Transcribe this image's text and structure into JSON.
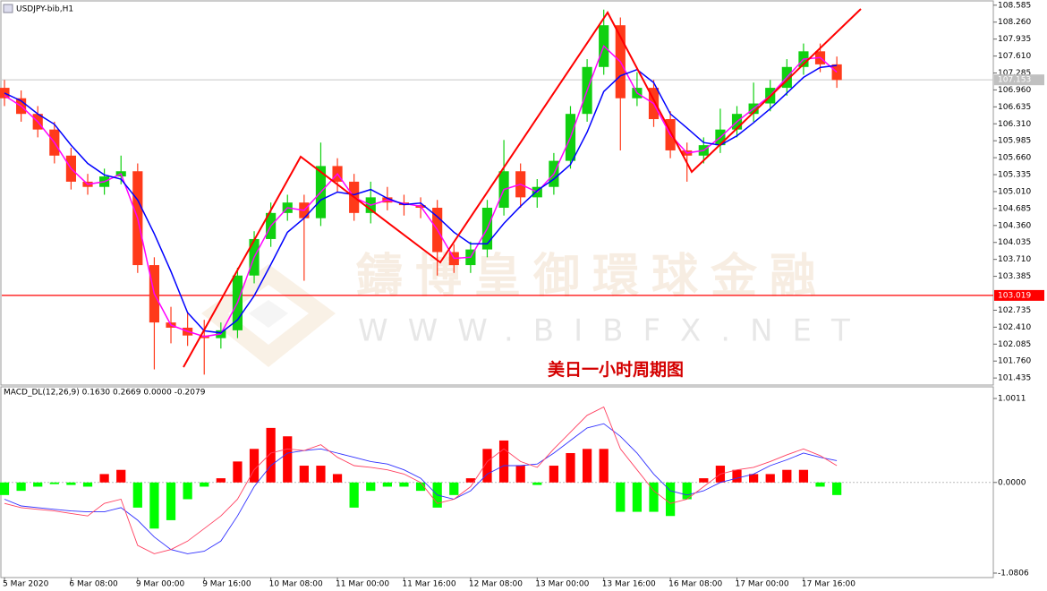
{
  "chart_data": [
    {
      "type": "candlestick",
      "title": "USDJPY-bib,H1",
      "annotation": "美日一小时周期图",
      "watermark": [
        "鑄博皇御環球金融",
        "WWW.BIBFX.NET"
      ],
      "up_color": "#10d010",
      "down_color": "#ff3a1a",
      "xlim": [
        0,
        237.6
      ],
      "x": [
        0,
        4,
        8,
        12,
        16,
        20,
        24,
        28,
        32,
        36,
        40,
        44,
        48,
        52,
        56,
        60,
        64,
        68,
        72,
        76,
        80,
        84,
        88,
        92,
        96,
        100,
        104,
        108,
        112,
        116,
        120,
        124,
        128,
        132,
        136,
        140,
        144,
        148,
        152,
        156,
        160,
        164,
        168,
        172,
        176,
        180,
        184,
        188,
        192,
        196,
        200
      ],
      "open": [
        107.0,
        106.8,
        106.5,
        106.2,
        105.7,
        105.2,
        105.1,
        105.3,
        105.4,
        103.6,
        102.5,
        102.4,
        102.25,
        102.2,
        102.35,
        103.4,
        104.1,
        104.6,
        104.8,
        104.5,
        105.5,
        105.2,
        104.6,
        104.9,
        104.8,
        104.75,
        104.7,
        103.85,
        103.6,
        103.9,
        104.7,
        105.4,
        104.9,
        105.1,
        105.6,
        106.5,
        107.4,
        108.2,
        106.8,
        107.0,
        106.4,
        105.8,
        105.7,
        105.9,
        106.2,
        106.5,
        106.7,
        107.0,
        107.4,
        107.7,
        107.45
      ],
      "high": [
        107.15,
        106.95,
        106.65,
        106.35,
        105.85,
        105.35,
        105.45,
        105.7,
        105.55,
        103.75,
        102.8,
        102.7,
        102.55,
        102.5,
        103.55,
        104.25,
        104.8,
        104.95,
        104.95,
        105.95,
        105.65,
        105.35,
        105.2,
        105.1,
        104.95,
        104.9,
        104.85,
        104.0,
        104.05,
        104.85,
        106.0,
        105.55,
        105.25,
        105.75,
        106.65,
        107.55,
        108.5,
        108.35,
        107.3,
        107.15,
        106.55,
        105.95,
        106.05,
        106.6,
        106.65,
        107.1,
        107.15,
        107.55,
        107.85,
        107.85,
        107.6
      ],
      "low": [
        106.65,
        106.35,
        106.05,
        105.55,
        105.05,
        104.95,
        104.95,
        105.15,
        103.45,
        101.6,
        102.1,
        102.05,
        101.5,
        102.0,
        102.2,
        103.25,
        103.95,
        104.45,
        103.3,
        104.35,
        105.0,
        104.45,
        104.4,
        104.65,
        104.55,
        104.5,
        103.4,
        103.45,
        103.45,
        103.75,
        104.55,
        104.7,
        104.7,
        104.95,
        105.45,
        106.35,
        107.25,
        105.8,
        106.65,
        106.25,
        105.65,
        105.2,
        105.55,
        105.75,
        106.05,
        106.35,
        106.55,
        106.85,
        107.25,
        107.3,
        107.0
      ],
      "close": [
        106.8,
        106.5,
        106.2,
        105.7,
        105.2,
        105.1,
        105.3,
        105.4,
        103.6,
        102.5,
        102.4,
        102.25,
        102.2,
        102.35,
        103.4,
        104.1,
        104.6,
        104.8,
        104.5,
        105.5,
        105.2,
        104.6,
        104.9,
        104.8,
        104.75,
        104.7,
        103.85,
        103.6,
        103.9,
        104.7,
        105.4,
        104.9,
        105.1,
        105.6,
        106.5,
        107.4,
        108.2,
        106.8,
        107.0,
        106.4,
        105.8,
        105.7,
        105.9,
        106.2,
        106.5,
        106.7,
        107.0,
        107.4,
        107.7,
        107.45,
        107.15
      ],
      "lines": [
        {
          "color": "#ff00ff",
          "values": [
            106.85,
            106.65,
            106.35,
            105.95,
            105.45,
            105.15,
            105.2,
            105.35,
            104.5,
            103.05,
            102.45,
            102.33,
            102.23,
            102.28,
            102.88,
            103.75,
            104.35,
            104.7,
            104.65,
            105.0,
            105.35,
            104.9,
            104.75,
            104.85,
            104.78,
            104.73,
            104.28,
            103.73,
            103.75,
            104.3,
            105.05,
            105.15,
            105.0,
            105.35,
            106.05,
            106.95,
            107.8,
            107.5,
            106.9,
            106.7,
            106.1,
            105.75,
            105.8,
            106.05,
            106.35,
            106.6,
            106.85,
            107.2,
            107.55,
            107.58,
            107.3
          ]
        },
        {
          "color": "#0000ff",
          "values": [
            106.9,
            106.75,
            106.5,
            106.3,
            105.9,
            105.55,
            105.33,
            105.25,
            104.85,
            104.2,
            103.48,
            102.69,
            102.34,
            102.3,
            102.55,
            103.01,
            103.61,
            104.23,
            104.5,
            104.85,
            105.0,
            104.95,
            105.05,
            104.88,
            104.76,
            104.79,
            104.53,
            104.23,
            104.01,
            104.01,
            104.4,
            104.73,
            105.03,
            105.25,
            105.53,
            106.15,
            106.93,
            107.23,
            107.35,
            107.1,
            106.5,
            106.23,
            105.95,
            105.9,
            106.08,
            106.33,
            106.6,
            106.9,
            107.2,
            107.39,
            107.43
          ]
        }
      ],
      "hline": {
        "value": 103.019,
        "color": "#ff0000"
      },
      "last_price": 107.153,
      "ylim": [
        101.3,
        108.65
      ],
      "yticks": [
        108.585,
        {
          "value": 108.26,
          "label": "108.260"
        },
        107.935,
        {
          "value": 107.61,
          "label": "107.610"
        },
        107.285,
        {
          "value": 106.96,
          "label": "106.960"
        },
        106.635,
        {
          "value": 106.31,
          "label": "106.310"
        },
        105.985,
        {
          "value": 105.66,
          "label": "105.660"
        },
        105.335,
        {
          "value": 105.01,
          "label": "105.010"
        },
        104.685,
        {
          "value": 104.36,
          "label": "104.360"
        },
        104.035,
        {
          "value": 103.71,
          "label": "103.710"
        },
        103.385,
        102.735,
        {
          "value": 102.41,
          "label": "102.410"
        },
        102.085,
        {
          "value": 101.76,
          "label": "101.760"
        },
        101.435
      ]
    },
    {
      "type": "macd",
      "label": "MACD_DL(12,26,9) 0.1630 0.2669 0.0000 -0.2079",
      "up_color": "#ff0000",
      "down_color": "#00ff00",
      "xlim": [
        0,
        237.6
      ],
      "x": [
        0,
        4,
        8,
        12,
        16,
        20,
        24,
        28,
        32,
        36,
        40,
        44,
        48,
        52,
        56,
        60,
        64,
        68,
        72,
        76,
        80,
        84,
        88,
        92,
        96,
        100,
        104,
        108,
        112,
        116,
        120,
        124,
        128,
        132,
        136,
        140,
        144,
        148,
        152,
        156,
        160,
        164,
        168,
        172,
        176,
        180,
        184,
        188,
        192,
        196,
        200
      ],
      "values": [
        -0.15,
        -0.1,
        -0.05,
        -0.02,
        -0.03,
        -0.05,
        0.1,
        0.15,
        -0.3,
        -0.55,
        -0.45,
        -0.2,
        -0.05,
        0.05,
        0.25,
        0.4,
        0.65,
        0.55,
        0.2,
        0.2,
        0.1,
        -0.3,
        -0.1,
        -0.05,
        -0.05,
        -0.1,
        -0.3,
        -0.15,
        0.05,
        0.4,
        0.5,
        0.2,
        -0.03,
        0.2,
        0.35,
        0.4,
        0.4,
        -0.35,
        -0.35,
        -0.35,
        -0.4,
        -0.2,
        0.05,
        0.2,
        0.15,
        0.1,
        0.1,
        0.15,
        0.15,
        -0.05,
        -0.15
      ],
      "lines": [
        {
          "color": "#3030ff",
          "values": [
            -0.2,
            -0.28,
            -0.3,
            -0.32,
            -0.34,
            -0.35,
            -0.35,
            -0.3,
            -0.45,
            -0.65,
            -0.8,
            -0.85,
            -0.82,
            -0.7,
            -0.4,
            -0.05,
            0.2,
            0.35,
            0.38,
            0.4,
            0.35,
            0.3,
            0.25,
            0.22,
            0.15,
            0.05,
            -0.15,
            -0.2,
            -0.1,
            0.1,
            0.2,
            0.2,
            0.22,
            0.35,
            0.5,
            0.65,
            0.7,
            0.55,
            0.35,
            0.1,
            -0.1,
            -0.15,
            -0.1,
            0.0,
            0.05,
            0.1,
            0.2,
            0.27,
            0.35,
            0.3,
            0.26
          ]
        },
        {
          "color": "#ff4060",
          "values": [
            -0.25,
            -0.3,
            -0.32,
            -0.34,
            -0.37,
            -0.4,
            -0.25,
            -0.2,
            -0.75,
            -0.85,
            -0.8,
            -0.7,
            -0.55,
            -0.4,
            -0.2,
            0.15,
            0.35,
            0.4,
            0.38,
            0.45,
            0.3,
            0.2,
            0.18,
            0.15,
            0.1,
            0.0,
            -0.25,
            -0.2,
            -0.05,
            0.25,
            0.4,
            0.25,
            0.18,
            0.4,
            0.6,
            0.8,
            0.9,
            0.4,
            0.15,
            -0.1,
            -0.25,
            -0.2,
            -0.05,
            0.1,
            0.15,
            0.18,
            0.25,
            0.33,
            0.4,
            0.32,
            0.2
          ]
        }
      ],
      "ylim": [
        -1.0806,
        1.0011
      ],
      "yticks": [
        1.0011,
        {
          "value": 0,
          "label": "0.0000"
        },
        -1.0806
      ],
      "xticks": [
        {
          "value": 0,
          "label": "5 Mar 2020"
        },
        {
          "value": 16,
          "label": "6 Mar 08:00"
        },
        {
          "value": 32,
          "label": "9 Mar 00:00"
        },
        {
          "value": 48,
          "label": "9 Mar 16:00"
        },
        {
          "value": 64,
          "label": "10 Mar 08:00"
        },
        {
          "value": 80,
          "label": "11 Mar 00:00"
        },
        {
          "value": 96,
          "label": "11 Mar 16:00"
        },
        {
          "value": 112,
          "label": "12 Mar 08:00"
        },
        {
          "value": 128,
          "label": "13 Mar 00:00"
        },
        {
          "value": 144,
          "label": "13 Mar 16:00"
        },
        {
          "value": 160,
          "label": "16 Mar 08:00"
        },
        {
          "value": 176,
          "label": "17 Mar 00:00"
        },
        {
          "value": 192,
          "label": "17 Mar 16:00"
        }
      ]
    }
  ]
}
